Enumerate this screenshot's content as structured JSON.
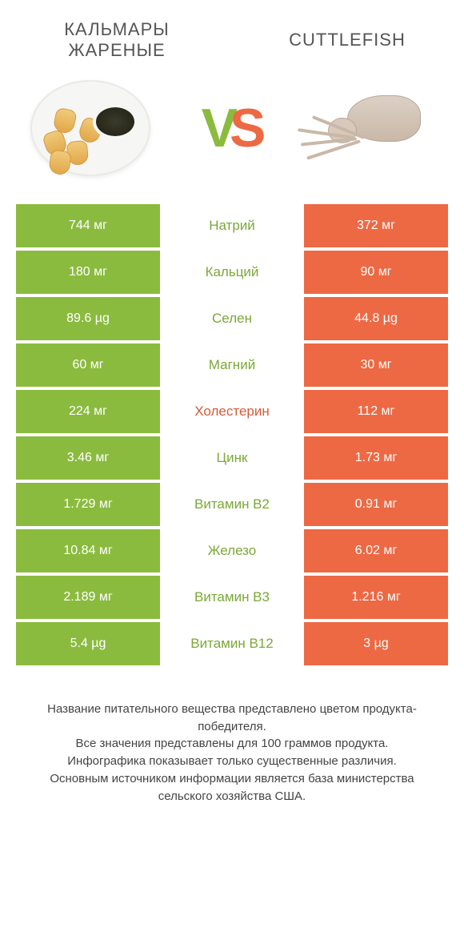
{
  "colors": {
    "green": "#8bbb3e",
    "orange": "#ec6944",
    "title": "#555555",
    "label_green": "#7ba836",
    "label_orange": "#d85a38"
  },
  "header": {
    "left_title": "КАЛЬМАРЫ ЖАРЕНЫЕ",
    "right_title": "CUTTLEFISH"
  },
  "vs": {
    "v": "V",
    "s": "S"
  },
  "rows": [
    {
      "left": "744 мг",
      "label": "Натрий",
      "right": "372 мг",
      "winner": "left"
    },
    {
      "left": "180 мг",
      "label": "Кальций",
      "right": "90 мг",
      "winner": "left"
    },
    {
      "left": "89.6 µg",
      "label": "Селен",
      "right": "44.8 µg",
      "winner": "left"
    },
    {
      "left": "60 мг",
      "label": "Магний",
      "right": "30 мг",
      "winner": "left"
    },
    {
      "left": "224 мг",
      "label": "Холестерин",
      "right": "112 мг",
      "winner": "right"
    },
    {
      "left": "3.46 мг",
      "label": "Цинк",
      "right": "1.73 мг",
      "winner": "left"
    },
    {
      "left": "1.729 мг",
      "label": "Витамин B2",
      "right": "0.91 мг",
      "winner": "left"
    },
    {
      "left": "10.84 мг",
      "label": "Железо",
      "right": "6.02 мг",
      "winner": "left"
    },
    {
      "left": "2.189 мг",
      "label": "Витамин B3",
      "right": "1.216 мг",
      "winner": "left"
    },
    {
      "left": "5.4 µg",
      "label": "Витамин B12",
      "right": "3 µg",
      "winner": "left"
    }
  ],
  "footer": {
    "line1": "Название питательного вещества представлено цветом продукта-победителя.",
    "line2": "Все значения представлены для 100 граммов продукта.",
    "line3": "Инфографика показывает только существенные различия.",
    "line4": "Основным источником информации является база министерства сельского хозяйства США."
  }
}
